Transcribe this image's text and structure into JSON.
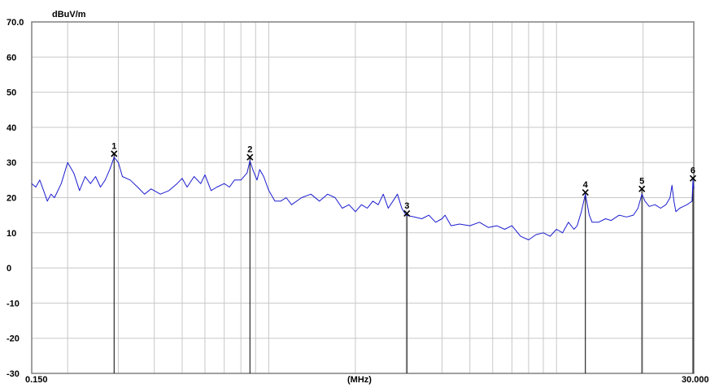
{
  "chart_data": {
    "type": "line",
    "unit_label": "dBuV/m",
    "xlabel": "(MHz)",
    "x_scale": "log",
    "xlim": [
      0.15,
      30.0
    ],
    "x_tick_labels": {
      "min": "0.150",
      "max": "30.000"
    },
    "ylim": [
      -30,
      70
    ],
    "y_ticks": [
      -30,
      -20,
      -10,
      0,
      10,
      20,
      30,
      40,
      50,
      60,
      70
    ],
    "y_tick_labels": [
      "-30",
      "-20",
      "-10",
      "0",
      "10",
      "20",
      "30",
      "40",
      "50",
      "60",
      "70.0"
    ],
    "grid": true,
    "series": [
      {
        "color": "#1c1cd0",
        "points": [
          [
            0.15,
            24
          ],
          [
            0.155,
            23
          ],
          [
            0.16,
            25
          ],
          [
            0.165,
            22
          ],
          [
            0.17,
            19
          ],
          [
            0.175,
            21
          ],
          [
            0.18,
            20
          ],
          [
            0.19,
            24
          ],
          [
            0.2,
            30
          ],
          [
            0.21,
            27
          ],
          [
            0.22,
            22
          ],
          [
            0.23,
            26
          ],
          [
            0.24,
            24
          ],
          [
            0.25,
            26
          ],
          [
            0.26,
            23
          ],
          [
            0.27,
            25
          ],
          [
            0.28,
            28
          ],
          [
            0.29,
            31.5
          ],
          [
            0.3,
            30
          ],
          [
            0.31,
            26
          ],
          [
            0.33,
            25
          ],
          [
            0.35,
            23
          ],
          [
            0.37,
            21
          ],
          [
            0.39,
            22.5
          ],
          [
            0.42,
            21
          ],
          [
            0.45,
            22
          ],
          [
            0.48,
            24
          ],
          [
            0.5,
            25.5
          ],
          [
            0.52,
            23
          ],
          [
            0.55,
            26
          ],
          [
            0.58,
            24
          ],
          [
            0.6,
            26.5
          ],
          [
            0.63,
            22
          ],
          [
            0.66,
            23
          ],
          [
            0.7,
            24
          ],
          [
            0.73,
            23
          ],
          [
            0.76,
            25
          ],
          [
            0.8,
            25
          ],
          [
            0.84,
            27
          ],
          [
            0.86,
            30.5
          ],
          [
            0.88,
            28
          ],
          [
            0.91,
            25
          ],
          [
            0.93,
            28
          ],
          [
            0.96,
            26
          ],
          [
            1.0,
            22
          ],
          [
            1.05,
            19
          ],
          [
            1.1,
            19
          ],
          [
            1.15,
            20
          ],
          [
            1.2,
            18
          ],
          [
            1.3,
            20
          ],
          [
            1.4,
            21
          ],
          [
            1.5,
            19
          ],
          [
            1.6,
            21
          ],
          [
            1.7,
            20
          ],
          [
            1.8,
            17
          ],
          [
            1.9,
            18
          ],
          [
            2.0,
            16
          ],
          [
            2.1,
            18
          ],
          [
            2.2,
            17
          ],
          [
            2.3,
            19
          ],
          [
            2.4,
            18
          ],
          [
            2.5,
            21
          ],
          [
            2.6,
            17
          ],
          [
            2.7,
            19
          ],
          [
            2.8,
            21
          ],
          [
            2.9,
            17
          ],
          [
            3.0,
            15
          ],
          [
            3.2,
            14.5
          ],
          [
            3.4,
            14
          ],
          [
            3.6,
            15
          ],
          [
            3.8,
            13
          ],
          [
            4.0,
            14
          ],
          [
            4.1,
            15
          ],
          [
            4.3,
            12
          ],
          [
            4.6,
            12.5
          ],
          [
            5.0,
            12
          ],
          [
            5.4,
            13
          ],
          [
            5.8,
            11.5
          ],
          [
            6.2,
            12
          ],
          [
            6.6,
            11
          ],
          [
            7.0,
            12
          ],
          [
            7.5,
            9
          ],
          [
            8.0,
            8
          ],
          [
            8.5,
            9.5
          ],
          [
            9.0,
            10
          ],
          [
            9.5,
            9
          ],
          [
            10.0,
            11
          ],
          [
            10.5,
            10
          ],
          [
            11.0,
            13
          ],
          [
            11.5,
            11
          ],
          [
            11.8,
            12
          ],
          [
            12.2,
            16
          ],
          [
            12.6,
            21
          ],
          [
            13.0,
            15
          ],
          [
            13.3,
            13
          ],
          [
            14.0,
            13
          ],
          [
            14.8,
            14
          ],
          [
            15.5,
            13.5
          ],
          [
            16.5,
            15
          ],
          [
            17.5,
            14.5
          ],
          [
            18.5,
            15
          ],
          [
            19.2,
            17
          ],
          [
            19.8,
            21
          ],
          [
            20.3,
            19
          ],
          [
            21.0,
            17.5
          ],
          [
            22.0,
            18
          ],
          [
            23.0,
            17
          ],
          [
            24.0,
            18
          ],
          [
            24.8,
            20
          ],
          [
            25.2,
            23.5
          ],
          [
            25.6,
            19
          ],
          [
            26.0,
            16
          ],
          [
            26.8,
            17
          ],
          [
            27.6,
            17.5
          ],
          [
            28.4,
            18
          ],
          [
            29.0,
            18.5
          ],
          [
            29.6,
            19
          ],
          [
            29.8,
            25
          ],
          [
            30.0,
            22.5
          ]
        ]
      }
    ],
    "markers": [
      {
        "label": "1",
        "x": 0.29,
        "y": 32.5
      },
      {
        "label": "2",
        "x": 0.86,
        "y": 31.5
      },
      {
        "label": "3",
        "x": 3.02,
        "y": 15.5
      },
      {
        "label": "4",
        "x": 12.6,
        "y": 21.5
      },
      {
        "label": "5",
        "x": 19.8,
        "y": 22.5
      },
      {
        "label": "6",
        "x": 29.8,
        "y": 25.5
      }
    ]
  }
}
